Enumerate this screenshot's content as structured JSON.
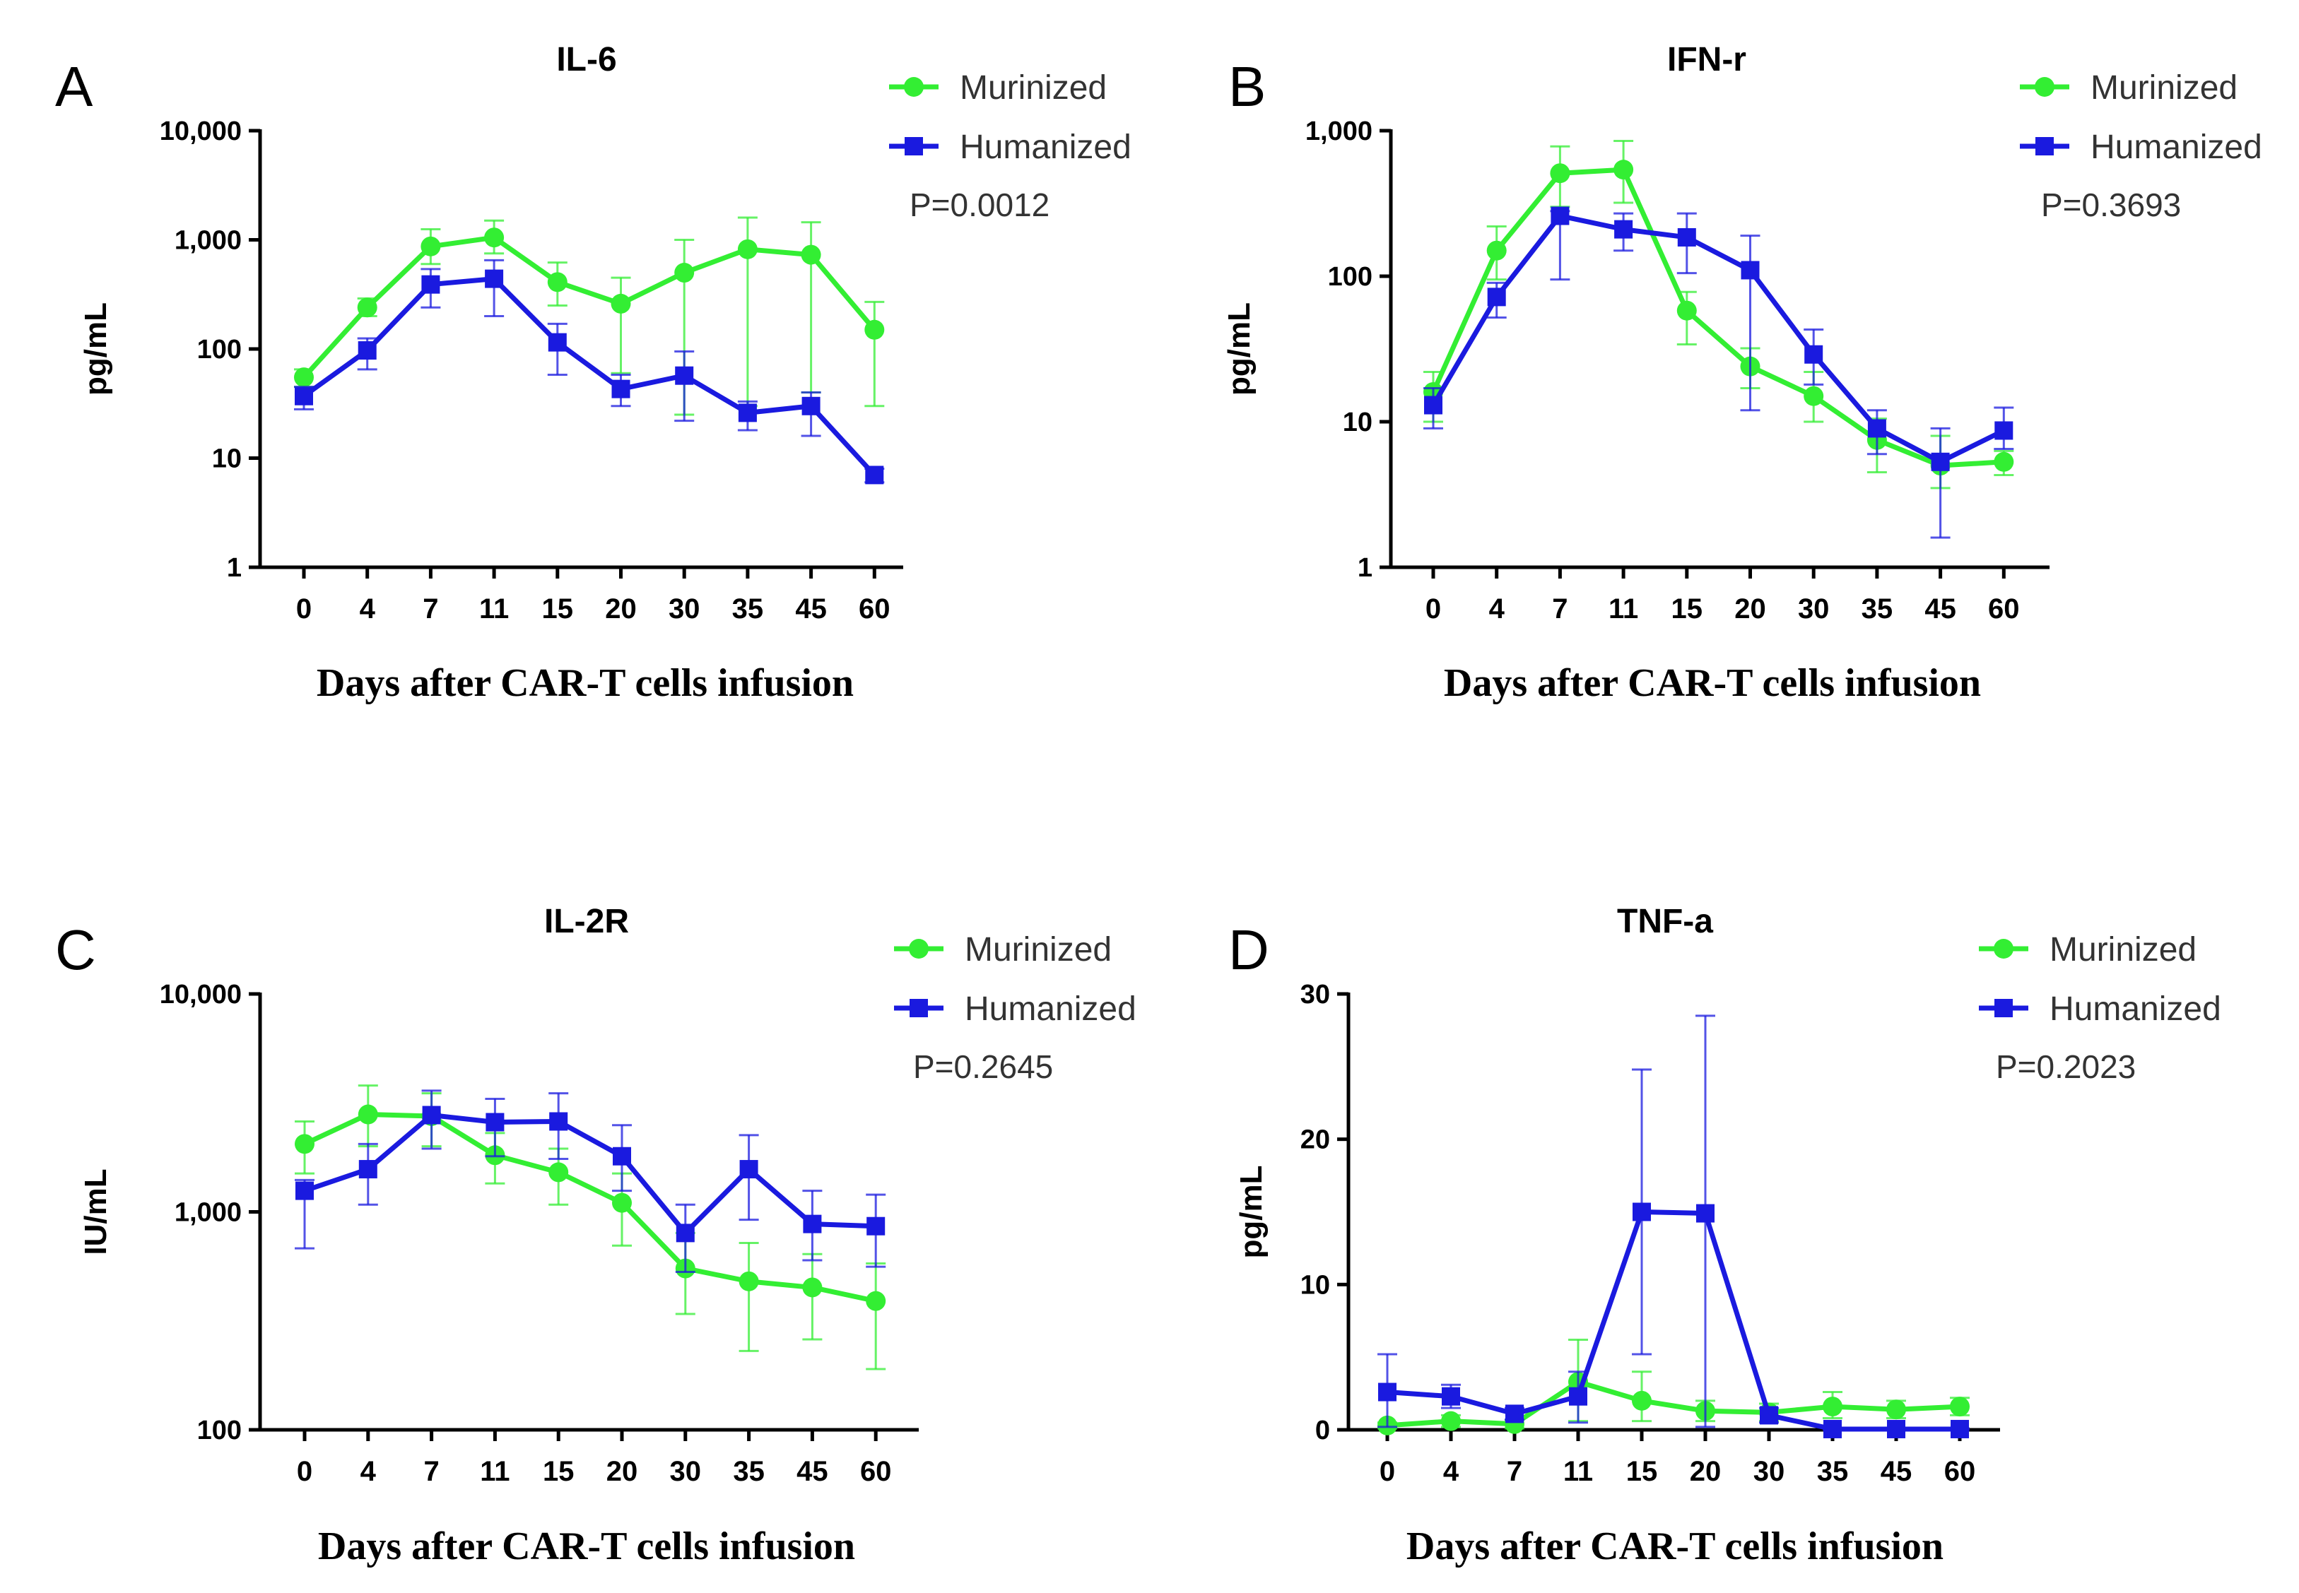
{
  "chart_data": [
    {
      "panel": "A",
      "type": "line",
      "title": "IL-6",
      "ylabel": "pg/mL",
      "xlabel": "Days after CAR-T cells infusion",
      "yscale": "log",
      "ylim": [
        1,
        10000
      ],
      "yticks": [
        1,
        10,
        100,
        1000,
        10000
      ],
      "ytick_labels": [
        "1",
        "10",
        "100",
        "1,000",
        "10,000"
      ],
      "categories": [
        "0",
        "4",
        "7",
        "11",
        "15",
        "20",
        "30",
        "35",
        "45",
        "60"
      ],
      "legend": [
        "Murinized",
        "Humanized"
      ],
      "p_value": "P=0.0012",
      "series": [
        {
          "name": "Murinized",
          "color": "#33ee33",
          "marker": "circle",
          "values": [
            55,
            240,
            870,
            1050,
            410,
            260,
            500,
            820,
            730,
            150
          ],
          "err_low": [
            45,
            200,
            600,
            750,
            250,
            60,
            25,
            30,
            40,
            30
          ],
          "err_high": [
            65,
            290,
            1250,
            1500,
            620,
            450,
            1000,
            1600,
            1450,
            270
          ]
        },
        {
          "name": "Humanized",
          "color": "#1a1adf",
          "marker": "square",
          "values": [
            37,
            97,
            390,
            440,
            115,
            43,
            57,
            26,
            30,
            7
          ],
          "err_low": [
            28,
            65,
            240,
            200,
            58,
            30,
            22,
            18,
            16,
            6
          ],
          "err_high": [
            45,
            125,
            540,
            650,
            170,
            58,
            95,
            33,
            40,
            8
          ]
        }
      ]
    },
    {
      "panel": "B",
      "type": "line",
      "title": "IFN-r",
      "ylabel": "pg/mL",
      "xlabel": "Days after CAR-T cells infusion",
      "yscale": "log",
      "ylim": [
        1,
        1000
      ],
      "yticks": [
        1,
        10,
        100,
        1000
      ],
      "ytick_labels": [
        "1",
        "10",
        "100",
        "1,000"
      ],
      "categories": [
        "0",
        "4",
        "7",
        "11",
        "15",
        "20",
        "30",
        "35",
        "45",
        "60"
      ],
      "legend": [
        "Murinized",
        "Humanized"
      ],
      "p_value": "P=0.3693",
      "series": [
        {
          "name": "Murinized",
          "color": "#33ee33",
          "marker": "circle",
          "values": [
            16,
            150,
            510,
            540,
            58,
            24,
            15,
            7.5,
            5,
            5.3
          ],
          "err_low": [
            10,
            95,
            300,
            320,
            34,
            17,
            10,
            4.5,
            3.5,
            4.3
          ],
          "err_high": [
            22,
            220,
            780,
            850,
            78,
            32,
            22,
            10.5,
            8,
            6.3
          ]
        },
        {
          "name": "Humanized",
          "color": "#1a1adf",
          "marker": "square",
          "values": [
            13,
            72,
            260,
            210,
            185,
            110,
            29,
            9,
            5.3,
            8.7
          ],
          "err_low": [
            9,
            52,
            95,
            150,
            105,
            12,
            18,
            6,
            1.6,
            6.5
          ],
          "err_high": [
            17,
            90,
            280,
            270,
            270,
            190,
            43,
            12,
            9,
            12.5
          ]
        }
      ]
    },
    {
      "panel": "C",
      "type": "line",
      "title": "IL-2R",
      "ylabel": "IU/mL",
      "xlabel": "Days after CAR-T cells infusion",
      "yscale": "log",
      "ylim": [
        100,
        10000
      ],
      "yticks": [
        100,
        1000,
        10000
      ],
      "ytick_labels": [
        "100",
        "1,000",
        "10,000"
      ],
      "categories": [
        "0",
        "4",
        "7",
        "11",
        "15",
        "20",
        "30",
        "35",
        "45",
        "60"
      ],
      "legend": [
        "Murinized",
        "Humanized"
      ],
      "p_value": "P=0.2645",
      "series": [
        {
          "name": "Murinized",
          "color": "#33ee33",
          "marker": "circle",
          "values": [
            2050,
            2800,
            2750,
            1820,
            1520,
            1100,
            550,
            480,
            450,
            390
          ],
          "err_low": [
            1500,
            2000,
            2000,
            1350,
            1080,
            700,
            340,
            230,
            260,
            190
          ],
          "err_high": [
            2600,
            3800,
            3500,
            2300,
            1950,
            1500,
            800,
            720,
            640,
            580
          ]
        },
        {
          "name": "Humanized",
          "color": "#1a1adf",
          "marker": "square",
          "values": [
            1250,
            1570,
            2780,
            2580,
            2600,
            1800,
            800,
            1570,
            880,
            860
          ],
          "err_low": [
            680,
            1080,
            1950,
            1800,
            1750,
            1250,
            530,
            920,
            600,
            560
          ],
          "err_high": [
            1400,
            2050,
            3600,
            3300,
            3500,
            2500,
            1080,
            2250,
            1250,
            1200
          ]
        }
      ]
    },
    {
      "panel": "D",
      "type": "line",
      "title": "TNF-a",
      "ylabel": "pg/mL",
      "xlabel": "Days after CAR-T cells infusion",
      "yscale": "linear",
      "ylim": [
        0,
        30
      ],
      "yticks": [
        0,
        10,
        20,
        30
      ],
      "ytick_labels": [
        "0",
        "10",
        "20",
        "30"
      ],
      "categories": [
        "0",
        "4",
        "7",
        "11",
        "15",
        "20",
        "30",
        "35",
        "45",
        "60"
      ],
      "legend": [
        "Murinized",
        "Humanized"
      ],
      "p_value": "P=0.2023",
      "series": [
        {
          "name": "Murinized",
          "color": "#33ee33",
          "marker": "circle",
          "values": [
            0.3,
            0.6,
            0.4,
            3.3,
            2.0,
            1.3,
            1.2,
            1.6,
            1.4,
            1.6
          ],
          "err_low": [
            0.1,
            0.2,
            0.1,
            0.6,
            0.6,
            0.6,
            0.6,
            0.8,
            0.8,
            1.0
          ],
          "err_high": [
            0.5,
            1.0,
            0.7,
            6.2,
            4.0,
            2.0,
            1.8,
            2.6,
            2.0,
            2.2
          ]
        },
        {
          "name": "Humanized",
          "color": "#1a1adf",
          "marker": "square",
          "values": [
            2.6,
            2.3,
            1.1,
            2.3,
            15.0,
            14.9,
            1.0,
            0.05,
            0.05,
            0.05
          ],
          "err_low": [
            0.2,
            1.5,
            0.7,
            0.5,
            5.2,
            0.2,
            0.5,
            0,
            0,
            0
          ],
          "err_high": [
            5.2,
            3.1,
            1.5,
            4.0,
            24.8,
            28.5,
            1.5,
            0.1,
            0.1,
            0.1
          ]
        }
      ]
    }
  ]
}
